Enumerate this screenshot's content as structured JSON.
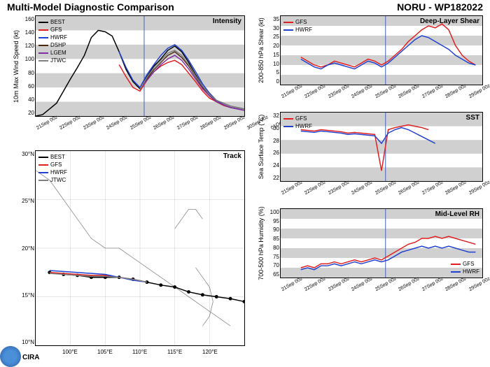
{
  "main_title": "Multi-Model Diagnostic Comparison",
  "storm_title": "NORU - WP182022",
  "x_labels": [
    "21Sep 00z",
    "22Sep 00z",
    "23Sep 00z",
    "24Sep 00z",
    "25Sep 00z",
    "26Sep 00z",
    "27Sep 00z",
    "28Sep 00z",
    "29Sep 00z",
    "30Sep 00z",
    "01Oct 00z"
  ],
  "vline_x": 5.2,
  "colors": {
    "BEST": "#000000",
    "GFS": "#e02020",
    "HWRF": "#2040d0",
    "DSHP": "#4a2a10",
    "LGEM": "#8030a0",
    "JTWC": "#808080"
  },
  "intensity": {
    "title": "Intensity",
    "ylabel": "10m Max Wind Speed (kt)",
    "ylim": [
      20,
      160
    ],
    "ytick_step": 20,
    "series": {
      "BEST": [
        20,
        22,
        30,
        38,
        55,
        72,
        88,
        105,
        130,
        140,
        138,
        132,
        110,
        85,
        68,
        58,
        75,
        90,
        100,
        112,
        118,
        110,
        95,
        78,
        62,
        50,
        40,
        35,
        32,
        30,
        28
      ],
      "GFS": [
        null,
        null,
        null,
        null,
        null,
        null,
        null,
        null,
        null,
        null,
        null,
        null,
        92,
        75,
        60,
        55,
        70,
        82,
        90,
        95,
        98,
        92,
        80,
        68,
        55,
        45,
        40,
        35,
        32,
        30,
        28
      ],
      "HWRF": [
        null,
        null,
        null,
        null,
        null,
        null,
        null,
        null,
        null,
        null,
        null,
        null,
        110,
        88,
        70,
        60,
        78,
        92,
        105,
        115,
        120,
        112,
        98,
        82,
        65,
        52,
        42,
        36,
        32,
        30,
        28
      ],
      "DSHP": [
        null,
        null,
        null,
        null,
        null,
        null,
        null,
        null,
        null,
        null,
        null,
        null,
        null,
        null,
        null,
        58,
        72,
        85,
        95,
        105,
        110,
        102,
        90,
        75,
        60,
        50,
        42,
        38,
        34,
        32,
        30
      ],
      "LGEM": [
        null,
        null,
        null,
        null,
        null,
        null,
        null,
        null,
        null,
        null,
        null,
        null,
        null,
        null,
        null,
        58,
        70,
        82,
        92,
        100,
        105,
        98,
        86,
        72,
        58,
        48,
        40,
        36,
        32,
        30,
        28
      ],
      "JTWC": [
        null,
        null,
        null,
        null,
        null,
        null,
        null,
        null,
        null,
        null,
        null,
        null,
        null,
        null,
        null,
        58,
        74,
        88,
        98,
        108,
        112,
        105,
        92,
        76,
        62,
        50,
        42,
        38,
        34,
        32,
        30
      ]
    }
  },
  "shear": {
    "title": "Deep-Layer Shear",
    "ylabel": "200-850 hPa Shear (kt)",
    "ylim": [
      0,
      35
    ],
    "ytick_step": 5,
    "series": {
      "GFS": [
        null,
        null,
        null,
        14,
        12,
        10,
        9,
        10,
        12,
        11,
        10,
        9,
        11,
        13,
        12,
        10,
        12,
        15,
        18,
        22,
        25,
        28,
        30,
        29,
        31,
        28,
        20,
        15,
        12,
        10,
        null
      ],
      "HWRF": [
        null,
        null,
        null,
        13,
        11,
        9,
        8,
        10,
        11,
        10,
        9,
        8,
        10,
        12,
        11,
        9,
        11,
        14,
        17,
        20,
        23,
        25,
        24,
        22,
        20,
        18,
        15,
        13,
        11,
        10,
        null
      ]
    }
  },
  "sst": {
    "title": "SST",
    "ylabel": "Sea Surface Temp (°C)",
    "ylim": [
      22,
      32
    ],
    "ytick_step": 2,
    "series": {
      "GFS": [
        null,
        null,
        null,
        29.5,
        29.4,
        29.3,
        29.5,
        29.4,
        29.3,
        29.2,
        29.0,
        29.1,
        29.0,
        28.9,
        28.8,
        23.5,
        29.5,
        29.8,
        30.0,
        30.2,
        30.0,
        29.8,
        29.5,
        null,
        null,
        null,
        null,
        null,
        null,
        null,
        null
      ],
      "HWRF": [
        null,
        null,
        null,
        29.3,
        29.2,
        29.1,
        29.3,
        29.2,
        29.1,
        29.0,
        28.8,
        28.9,
        28.8,
        28.7,
        28.6,
        27.5,
        29.0,
        29.5,
        29.8,
        29.5,
        29.0,
        28.5,
        28.0,
        27.5,
        null,
        null,
        null,
        null,
        null,
        null,
        null
      ]
    }
  },
  "rh": {
    "title": "Mid-Level RH",
    "ylabel": "700-500 hPa Humidity (%)",
    "ylim": [
      65,
      100
    ],
    "ytick_step": 5,
    "series": {
      "GFS": [
        null,
        null,
        null,
        70,
        71,
        70,
        72,
        72,
        73,
        72,
        73,
        74,
        73,
        74,
        75,
        74,
        76,
        78,
        80,
        82,
        83,
        85,
        85,
        86,
        85,
        86,
        85,
        84,
        83,
        82,
        null
      ],
      "HWRF": [
        null,
        null,
        null,
        69,
        70,
        69,
        71,
        71,
        72,
        71,
        72,
        73,
        72,
        73,
        74,
        73,
        74,
        76,
        78,
        79,
        80,
        81,
        80,
        81,
        80,
        81,
        80,
        79,
        78,
        78,
        null
      ]
    }
  },
  "track": {
    "title": "Track",
    "xlim": [
      95,
      125
    ],
    "ylim": [
      10,
      30
    ],
    "xticks": [
      100,
      105,
      110,
      115,
      120
    ],
    "yticks": [
      10,
      15,
      20,
      25,
      30
    ],
    "coast_paths": [
      "M95,28 L97,27 L99,25 L101,23 L103,21 L105,20 L107,20 L109,19 L111,18 L113,17 L115,16 L117,15 L119,14 L121,13 L123,12",
      "M118,18 L119,17 L120,16 L120.5,14.5 L120,13 L119,12",
      "M115,22 L116,23 L117,24 L118,24 L119,23"
    ],
    "series": {
      "BEST": [
        [
          125,
          14.5
        ],
        [
          123,
          14.8
        ],
        [
          121,
          15
        ],
        [
          119,
          15.2
        ],
        [
          117,
          15.5
        ],
        [
          115,
          16
        ],
        [
          113,
          16.2
        ],
        [
          111,
          16.5
        ],
        [
          109,
          16.8
        ],
        [
          107,
          17
        ],
        [
          105,
          17
        ],
        [
          103,
          17
        ],
        [
          101,
          17.2
        ],
        [
          99,
          17.3
        ],
        [
          97,
          17.5
        ]
      ],
      "GFS": [
        [
          111,
          16.5
        ],
        [
          109,
          16.8
        ],
        [
          107,
          17
        ],
        [
          105,
          17.2
        ],
        [
          103,
          17.2
        ],
        [
          101,
          17.3
        ],
        [
          99,
          17.4
        ],
        [
          97,
          17.5
        ]
      ],
      "HWRF": [
        [
          111,
          16.5
        ],
        [
          109,
          16.7
        ],
        [
          107,
          17
        ],
        [
          105,
          17.3
        ],
        [
          103,
          17.4
        ],
        [
          101,
          17.5
        ],
        [
          99,
          17.6
        ],
        [
          97,
          17.7
        ]
      ],
      "JTWC": [
        [
          111,
          16.5
        ],
        [
          109,
          16.8
        ],
        [
          107,
          17
        ],
        [
          105,
          17.1
        ],
        [
          103,
          17.1
        ],
        [
          101,
          17.2
        ],
        [
          99,
          17.3
        ],
        [
          97,
          17.4
        ]
      ]
    }
  }
}
